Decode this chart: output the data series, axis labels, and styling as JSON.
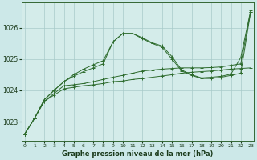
{
  "title": "Graphe pression niveau de la mer (hPa)",
  "bg_color": "#cce8e8",
  "plot_bg_color": "#d4ecea",
  "grid_color": "#a8caca",
  "line_color": "#2d6b2d",
  "marker_color": "#2d6b2d",
  "x_ticks": [
    0,
    1,
    2,
    3,
    4,
    5,
    6,
    7,
    8,
    9,
    10,
    11,
    12,
    13,
    14,
    15,
    16,
    17,
    18,
    19,
    20,
    21,
    22,
    23
  ],
  "y_ticks": [
    1023,
    1024,
    1025,
    1026
  ],
  "ylim": [
    1022.4,
    1026.8
  ],
  "xlim": [
    -0.3,
    23.3
  ],
  "series": [
    [
      1022.6,
      1023.1,
      1023.65,
      1023.85,
      1024.05,
      1024.1,
      1024.15,
      1024.18,
      1024.22,
      1024.28,
      1024.3,
      1024.35,
      1024.38,
      1024.42,
      1024.46,
      1024.5,
      1024.55,
      1024.58,
      1024.6,
      1024.62,
      1024.65,
      1024.68,
      1024.7,
      1024.72
    ],
    [
      1022.6,
      1023.1,
      1023.65,
      1023.9,
      1024.15,
      1024.18,
      1024.22,
      1024.28,
      1024.35,
      1024.42,
      1024.48,
      1024.55,
      1024.62,
      1024.65,
      1024.68,
      1024.7,
      1024.72,
      1024.72,
      1024.72,
      1024.73,
      1024.75,
      1024.8,
      1024.85,
      1026.5
    ],
    [
      1022.6,
      1023.1,
      1023.7,
      1024.0,
      1024.28,
      1024.45,
      1024.6,
      1024.72,
      1024.85,
      1025.55,
      1025.82,
      1025.82,
      1025.65,
      1025.5,
      1025.38,
      1025.0,
      1024.62,
      1024.48,
      1024.38,
      1024.38,
      1024.42,
      1024.48,
      1024.55,
      1026.5
    ],
    [
      1022.6,
      1023.1,
      1023.7,
      1024.0,
      1024.28,
      1024.5,
      1024.68,
      1024.82,
      1024.95,
      1025.55,
      1025.82,
      1025.82,
      1025.68,
      1025.52,
      1025.42,
      1025.08,
      1024.65,
      1024.5,
      1024.4,
      1024.42,
      1024.45,
      1024.52,
      1025.05,
      1026.55
    ]
  ]
}
